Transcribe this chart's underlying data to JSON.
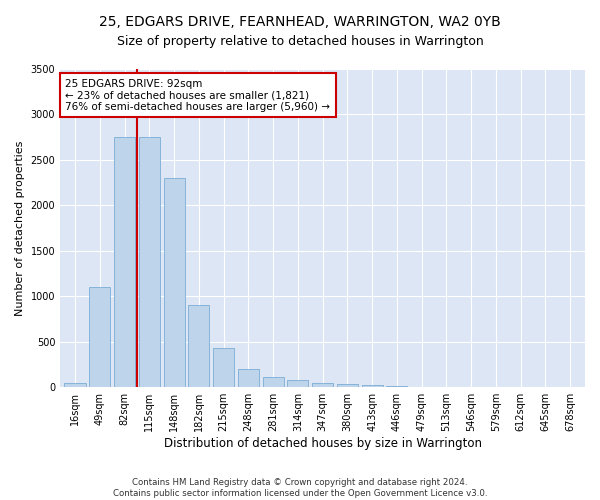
{
  "title": "25, EDGARS DRIVE, FEARNHEAD, WARRINGTON, WA2 0YB",
  "subtitle": "Size of property relative to detached houses in Warrington",
  "xlabel": "Distribution of detached houses by size in Warrington",
  "ylabel": "Number of detached properties",
  "bar_labels": [
    "16sqm",
    "49sqm",
    "82sqm",
    "115sqm",
    "148sqm",
    "182sqm",
    "215sqm",
    "248sqm",
    "281sqm",
    "314sqm",
    "347sqm",
    "380sqm",
    "413sqm",
    "446sqm",
    "479sqm",
    "513sqm",
    "546sqm",
    "579sqm",
    "612sqm",
    "645sqm",
    "678sqm"
  ],
  "bar_values": [
    50,
    1100,
    2750,
    2750,
    2300,
    900,
    430,
    200,
    110,
    80,
    50,
    35,
    20,
    10,
    5,
    3,
    2,
    1,
    1,
    0,
    0
  ],
  "bar_color": "#bdd4eb",
  "bar_edgecolor": "#7aadd4",
  "vline_x": 2.5,
  "vline_color": "#cc0000",
  "annotation_text": "25 EDGARS DRIVE: 92sqm\n← 23% of detached houses are smaller (1,821)\n76% of semi-detached houses are larger (5,960) →",
  "annotation_box_facecolor": "#ffffff",
  "annotation_box_edgecolor": "#cc0000",
  "ylim": [
    0,
    3500
  ],
  "yticks": [
    0,
    500,
    1000,
    1500,
    2000,
    2500,
    3000,
    3500
  ],
  "plot_background_color": "#dce6f5",
  "grid_color": "#ffffff",
  "footer_line1": "Contains HM Land Registry data © Crown copyright and database right 2024.",
  "footer_line2": "Contains public sector information licensed under the Open Government Licence v3.0.",
  "title_fontsize": 10,
  "subtitle_fontsize": 9,
  "xlabel_fontsize": 8.5,
  "ylabel_fontsize": 8,
  "tick_fontsize": 7,
  "annotation_fontsize": 7.5
}
